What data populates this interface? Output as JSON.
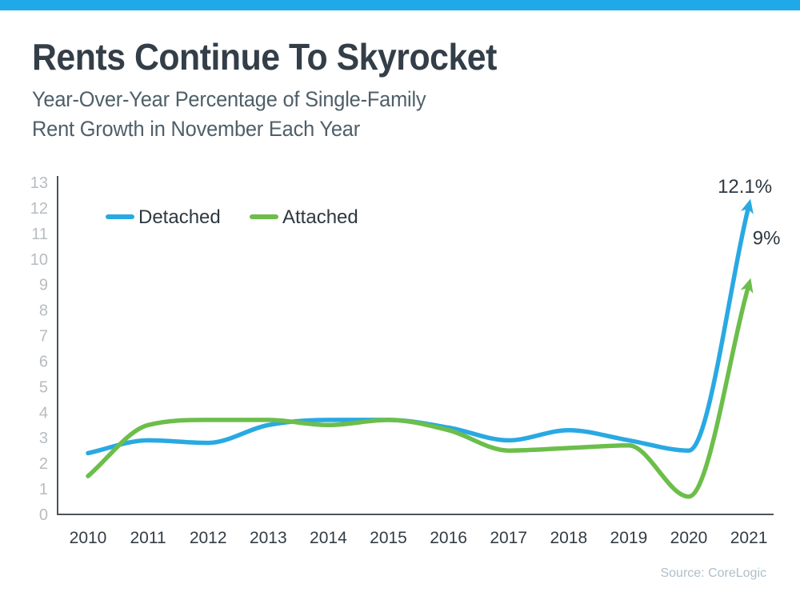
{
  "header": {
    "title": "Rents Continue To Skyrocket",
    "subtitle_line1": "Year-Over-Year Percentage of Single-Family",
    "subtitle_line2": "Rent Growth in November Each Year"
  },
  "chart_data": {
    "type": "line",
    "title": "Rents Continue To Skyrocket",
    "subtitle": "Year-Over-Year Percentage of Single-Family Rent Growth in November Each Year",
    "categories": [
      "2010",
      "2011",
      "2012",
      "2013",
      "2014",
      "2015",
      "2016",
      "2017",
      "2018",
      "2019",
      "2020",
      "2021"
    ],
    "series": [
      {
        "name": "Detached",
        "color": "#29A9E2",
        "values": [
          2.4,
          2.9,
          2.8,
          3.5,
          3.7,
          3.7,
          3.4,
          2.9,
          3.3,
          2.9,
          2.5,
          12.1
        ],
        "end_label": "12.1%"
      },
      {
        "name": "Attached",
        "color": "#6CBE4B",
        "values": [
          1.5,
          3.5,
          3.7,
          3.7,
          3.5,
          3.7,
          3.3,
          2.5,
          2.6,
          2.7,
          0.7,
          9
        ],
        "end_label": "9%"
      }
    ],
    "ylim": [
      0,
      13
    ],
    "y_ticks": [
      0,
      1,
      2,
      3,
      4,
      5,
      6,
      7,
      8,
      9,
      10,
      11,
      12,
      13
    ],
    "xlabel": "",
    "ylabel": "",
    "grid": false,
    "legend_position": "top-left-inside"
  },
  "source": {
    "label": "Source: CoreLogic"
  },
  "colors": {
    "top_bar": "#1FA9E8",
    "title_text": "#333E48",
    "subtitle_text": "#4F5F69",
    "axis_line": "#4A545C",
    "y_tick_text": "#B7BCC0",
    "x_tick_text": "#333C44",
    "legend_text": "#2E3840",
    "annotation_text": "#2E3840",
    "source_text": "#AEBFC9"
  }
}
